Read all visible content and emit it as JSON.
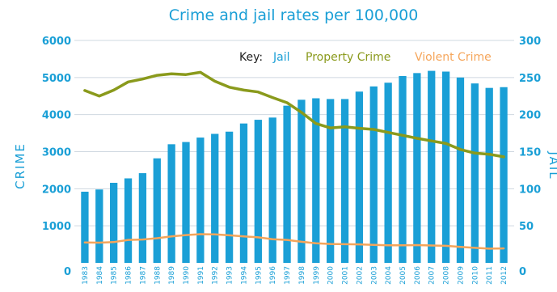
{
  "chart_data": {
    "type": "bar",
    "title": "Crime and jail rates per 100,000",
    "left_axis_label": "CRIME",
    "right_axis_label": "JAIL",
    "y_left": {
      "min": 0,
      "max": 6000,
      "ticks": [
        0,
        1000,
        2000,
        3000,
        4000,
        5000,
        6000
      ]
    },
    "y_right": {
      "min": 0,
      "max": 300,
      "ticks": [
        0,
        50,
        100,
        150,
        200,
        250,
        300
      ]
    },
    "legend": {
      "key_label": "Key:",
      "placement": "top-right",
      "entries": [
        {
          "label": "Jail",
          "color": "#1a9fd6"
        },
        {
          "label": "Property Crime",
          "color": "#8a9a1c"
        },
        {
          "label": "Violent Crime",
          "color": "#f5a55a"
        }
      ]
    },
    "categories": [
      "1983",
      "1984",
      "1985",
      "1986",
      "1987",
      "1988",
      "1989",
      "1990",
      "1991",
      "1992",
      "1993",
      "1994",
      "1995",
      "1996",
      "1997",
      "1998",
      "1999",
      "2000",
      "2001",
      "2002",
      "2003",
      "2004",
      "2005",
      "2006",
      "2007",
      "2008",
      "2009",
      "2010",
      "2011",
      "2012"
    ],
    "series": [
      {
        "name": "Jail",
        "type": "bar",
        "axis": "right",
        "color": "#1a9fd6",
        "values": [
          96,
          99,
          108,
          114,
          121,
          141,
          160,
          163,
          169,
          174,
          177,
          188,
          193,
          196,
          212,
          220,
          222,
          221,
          221,
          231,
          238,
          243,
          252,
          256,
          259,
          258,
          250,
          242,
          236,
          237
        ]
      },
      {
        "name": "Property Crime",
        "type": "line",
        "axis": "left",
        "color": "#8a9a1c",
        "values": [
          4650,
          4500,
          4660,
          4880,
          4960,
          5060,
          5100,
          5080,
          5140,
          4900,
          4740,
          4660,
          4610,
          4460,
          4320,
          4060,
          3760,
          3640,
          3670,
          3630,
          3600,
          3520,
          3440,
          3360,
          3290,
          3220,
          3060,
          2960,
          2930,
          2860
        ]
      },
      {
        "name": "Violent Crime",
        "type": "line",
        "axis": "left",
        "color": "#f5a55a",
        "values": [
          550,
          545,
          560,
          620,
          630,
          665,
          715,
          750,
          775,
          770,
          745,
          715,
          690,
          640,
          620,
          570,
          530,
          510,
          505,
          500,
          485,
          475,
          475,
          480,
          470,
          460,
          430,
          405,
          385,
          390
        ]
      }
    ],
    "grid": "horizontal"
  }
}
